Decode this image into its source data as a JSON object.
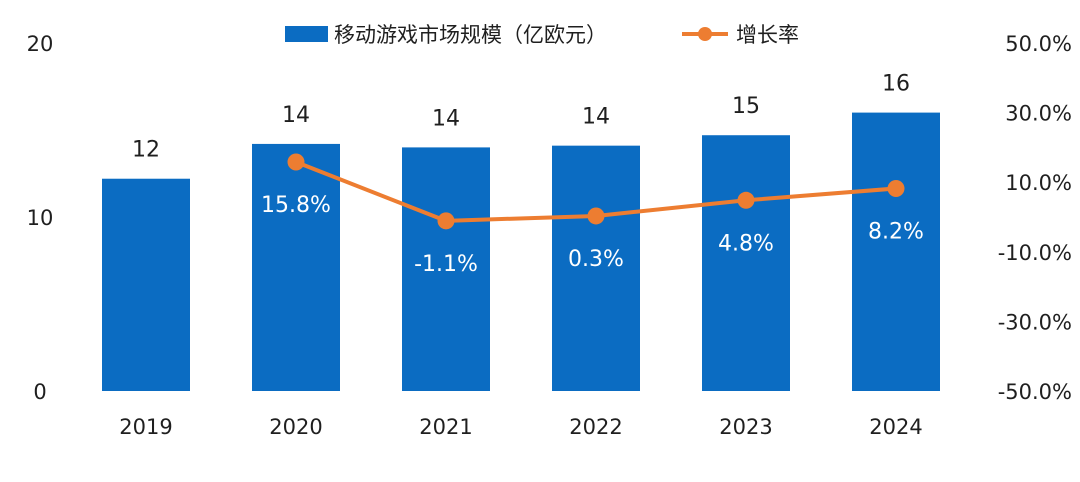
{
  "chart_data": {
    "type": "bar",
    "categories": [
      "2019",
      "2020",
      "2021",
      "2022",
      "2023",
      "2024"
    ],
    "series": [
      {
        "name": "移动游戏市场规模（亿欧元）",
        "type": "bar",
        "axis": "left",
        "color": "#0b6cc2",
        "values": [
          12.2,
          14.2,
          14.0,
          14.1,
          14.7,
          16.0
        ],
        "labels": [
          "12",
          "14",
          "14",
          "14",
          "15",
          "16"
        ]
      },
      {
        "name": "增长率",
        "type": "line",
        "axis": "right",
        "color": "#ed7d31",
        "values": [
          null,
          15.8,
          -1.1,
          0.3,
          4.8,
          8.2
        ],
        "labels": [
          null,
          "15.8%",
          "-1.1%",
          "0.3%",
          "4.8%",
          "8.2%"
        ]
      }
    ],
    "y_left": {
      "ylim": [
        0,
        20
      ],
      "ticks": [
        "0",
        "10",
        "20"
      ]
    },
    "y_right": {
      "ylim": [
        -50,
        50
      ],
      "ticks": [
        "-50.0%",
        "-30.0%",
        "-10.0%",
        "10.0%",
        "30.0%",
        "50.0%"
      ]
    },
    "legend": "top-center",
    "grid": false
  }
}
